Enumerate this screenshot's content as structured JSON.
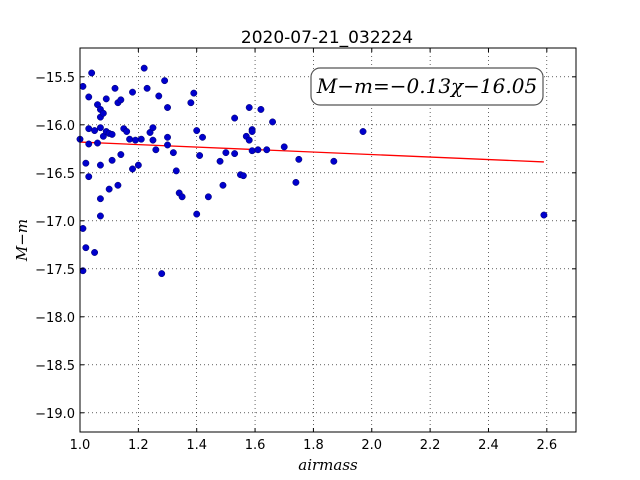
{
  "chart_data": {
    "type": "scatter",
    "title": "2020-07-21_032224",
    "xlabel": "airmass",
    "ylabel": "M−m",
    "xlim": [
      1.0,
      2.7
    ],
    "ylim": [
      -19.2,
      -15.2
    ],
    "y_inverted": true,
    "grid": true,
    "xticks": [
      1.0,
      1.2,
      1.4,
      1.6,
      1.8,
      2.0,
      2.2,
      2.4,
      2.6
    ],
    "xtick_labels": [
      "1.0",
      "1.2",
      "1.4",
      "1.6",
      "1.8",
      "2.0",
      "2.2",
      "2.4",
      "2.6"
    ],
    "yticks": [
      -15.5,
      -16.0,
      -16.5,
      -17.0,
      -17.5,
      -18.0,
      -18.5,
      -19.0
    ],
    "ytick_labels": [
      "−15.5",
      "−16.0",
      "−16.5",
      "−17.0",
      "−17.5",
      "−18.0",
      "−18.5",
      "−19.0"
    ],
    "annotation": "M−m=−0.13χ−16.05",
    "annotation_position": "top-right",
    "fit": {
      "slope": -0.13,
      "intercept": -16.05,
      "x_range": [
        1.0,
        2.59
      ],
      "color": "#ff0000"
    },
    "marker_color": "#0000cc",
    "points": [
      [
        1.0,
        -16.15
      ],
      [
        1.01,
        -17.08
      ],
      [
        1.01,
        -17.52
      ],
      [
        1.01,
        -15.6
      ],
      [
        1.02,
        -16.4
      ],
      [
        1.02,
        -17.28
      ],
      [
        1.03,
        -15.71
      ],
      [
        1.03,
        -16.04
      ],
      [
        1.03,
        -16.2
      ],
      [
        1.03,
        -16.54
      ],
      [
        1.04,
        -15.46
      ],
      [
        1.05,
        -16.06
      ],
      [
        1.05,
        -17.33
      ],
      [
        1.06,
        -15.79
      ],
      [
        1.06,
        -16.19
      ],
      [
        1.07,
        -15.84
      ],
      [
        1.07,
        -15.92
      ],
      [
        1.07,
        -16.03
      ],
      [
        1.07,
        -16.42
      ],
      [
        1.07,
        -16.77
      ],
      [
        1.07,
        -16.95
      ],
      [
        1.08,
        -15.88
      ],
      [
        1.08,
        -16.12
      ],
      [
        1.09,
        -15.73
      ],
      [
        1.09,
        -16.07
      ],
      [
        1.1,
        -16.09
      ],
      [
        1.1,
        -16.67
      ],
      [
        1.11,
        -16.1
      ],
      [
        1.11,
        -16.37
      ],
      [
        1.12,
        -15.62
      ],
      [
        1.13,
        -15.77
      ],
      [
        1.13,
        -16.63
      ],
      [
        1.14,
        -15.74
      ],
      [
        1.14,
        -16.31
      ],
      [
        1.15,
        -16.04
      ],
      [
        1.16,
        -16.07
      ],
      [
        1.17,
        -16.15
      ],
      [
        1.18,
        -15.66
      ],
      [
        1.18,
        -16.46
      ],
      [
        1.19,
        -16.16
      ],
      [
        1.2,
        -16.42
      ],
      [
        1.21,
        -16.15
      ],
      [
        1.22,
        -15.41
      ],
      [
        1.23,
        -15.62
      ],
      [
        1.24,
        -16.08
      ],
      [
        1.25,
        -16.03
      ],
      [
        1.25,
        -16.16
      ],
      [
        1.26,
        -16.26
      ],
      [
        1.27,
        -15.7
      ],
      [
        1.28,
        -17.55
      ],
      [
        1.29,
        -15.54
      ],
      [
        1.3,
        -15.82
      ],
      [
        1.3,
        -16.13
      ],
      [
        1.3,
        -16.21
      ],
      [
        1.32,
        -16.29
      ],
      [
        1.33,
        -16.48
      ],
      [
        1.34,
        -16.71
      ],
      [
        1.35,
        -16.75
      ],
      [
        1.38,
        -15.77
      ],
      [
        1.39,
        -15.67
      ],
      [
        1.4,
        -16.06
      ],
      [
        1.4,
        -16.93
      ],
      [
        1.41,
        -16.32
      ],
      [
        1.42,
        -16.13
      ],
      [
        1.44,
        -16.75
      ],
      [
        1.48,
        -16.38
      ],
      [
        1.49,
        -16.63
      ],
      [
        1.5,
        -16.29
      ],
      [
        1.53,
        -15.93
      ],
      [
        1.53,
        -16.3
      ],
      [
        1.55,
        -16.52
      ],
      [
        1.56,
        -16.53
      ],
      [
        1.57,
        -16.12
      ],
      [
        1.58,
        -15.82
      ],
      [
        1.58,
        -16.16
      ],
      [
        1.59,
        -16.05
      ],
      [
        1.59,
        -16.07
      ],
      [
        1.59,
        -16.27
      ],
      [
        1.61,
        -16.26
      ],
      [
        1.62,
        -15.84
      ],
      [
        1.64,
        -16.26
      ],
      [
        1.66,
        -15.97
      ],
      [
        1.7,
        -16.23
      ],
      [
        1.74,
        -16.6
      ],
      [
        1.75,
        -16.36
      ],
      [
        1.87,
        -16.38
      ],
      [
        1.97,
        -16.07
      ],
      [
        2.59,
        -16.94
      ]
    ]
  }
}
